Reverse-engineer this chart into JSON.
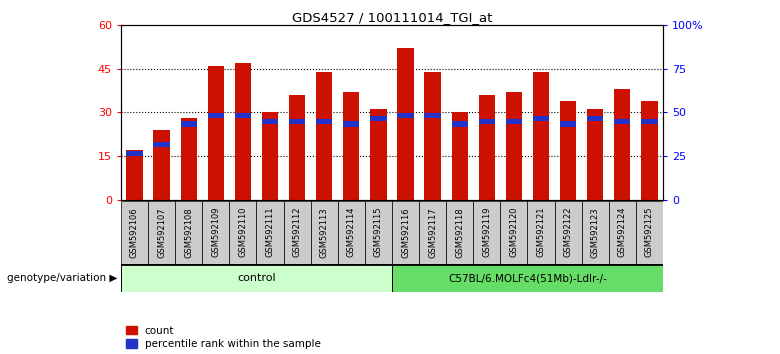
{
  "title": "GDS4527 / 100111014_TGI_at",
  "samples": [
    "GSM592106",
    "GSM592107",
    "GSM592108",
    "GSM592109",
    "GSM592110",
    "GSM592111",
    "GSM592112",
    "GSM592113",
    "GSM592114",
    "GSM592115",
    "GSM592116",
    "GSM592117",
    "GSM592118",
    "GSM592119",
    "GSM592120",
    "GSM592121",
    "GSM592122",
    "GSM592123",
    "GSM592124",
    "GSM592125"
  ],
  "count_values": [
    17,
    24,
    28,
    46,
    47,
    30,
    36,
    44,
    37,
    31,
    52,
    44,
    30,
    36,
    37,
    44,
    34,
    31,
    38,
    34
  ],
  "percentile_values": [
    16,
    19,
    26,
    29,
    29,
    27,
    27,
    27,
    26,
    28,
    29,
    29,
    26,
    27,
    27,
    28,
    26,
    28,
    27,
    27
  ],
  "bar_color": "#cc1100",
  "percentile_color": "#2233cc",
  "ylim_left": [
    0,
    60
  ],
  "ylim_right": [
    0,
    100
  ],
  "yticks_left": [
    0,
    15,
    30,
    45,
    60
  ],
  "yticks_right": [
    0,
    25,
    50,
    75,
    100
  ],
  "ytick_labels_right": [
    "0",
    "25",
    "50",
    "75",
    "100%"
  ],
  "control_samples": 10,
  "control_label": "control",
  "genotype_label": "C57BL/6.MOLFc4(51Mb)-Ldlr-/-",
  "control_color": "#ccffcc",
  "genotype_color": "#66dd66",
  "group_label": "genotype/variation",
  "legend_count": "count",
  "legend_percentile": "percentile rank within the sample",
  "bar_width": 0.6,
  "background_color": "#ffffff",
  "xtick_bg_color": "#cccccc",
  "bar_edge_color": "none"
}
